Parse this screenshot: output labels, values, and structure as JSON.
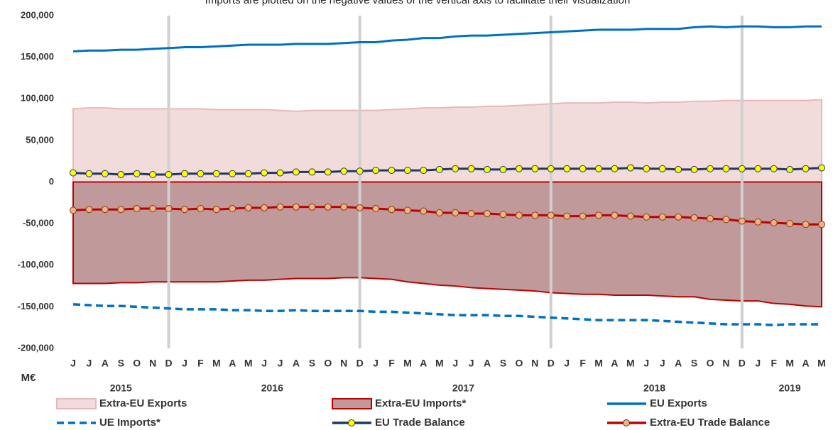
{
  "chart_data": {
    "type": "line",
    "subtitle": "Imports are plotted on the negative values of the vertical axis to facilitate their visualization",
    "y_label": "M€",
    "categories": [
      "J",
      "J",
      "A",
      "S",
      "O",
      "N",
      "D",
      "J",
      "F",
      "M",
      "A",
      "M",
      "J",
      "J",
      "A",
      "S",
      "O",
      "N",
      "D",
      "J",
      "F",
      "M",
      "A",
      "M",
      "J",
      "J",
      "A",
      "S",
      "O",
      "N",
      "D",
      "J",
      "F",
      "M",
      "A",
      "M",
      "J",
      "J",
      "A",
      "S",
      "O",
      "N",
      "D",
      "J",
      "F",
      "M",
      "A",
      "M"
    ],
    "years": [
      "2015",
      "2016",
      "2017",
      "2018",
      "2019"
    ],
    "ylim": [
      -200000,
      200000
    ],
    "yticks": [
      {
        "value": 200000,
        "label": "200,000"
      },
      {
        "value": 150000,
        "label": "150,000"
      },
      {
        "value": 100000,
        "label": "100,000"
      },
      {
        "value": 50000,
        "label": "50,000"
      },
      0,
      {
        "value": -50000,
        "label": "-50,000"
      },
      {
        "value": -100000,
        "label": "-100,000"
      },
      {
        "value": -150000,
        "label": "-150,000"
      },
      {
        "value": -200000,
        "label": "-200,000"
      }
    ],
    "grid": false,
    "series": [
      {
        "name": "Extra-EU Exports",
        "kind": "area",
        "color": "#f2dcdb",
        "stroke": "#e6b9b8",
        "values": [
          88000,
          89000,
          89000,
          88000,
          88000,
          88000,
          88000,
          88000,
          88000,
          87000,
          87000,
          87000,
          87000,
          86000,
          85000,
          86000,
          86000,
          86000,
          86000,
          86000,
          87000,
          88000,
          89000,
          89000,
          90000,
          90000,
          91000,
          91000,
          92000,
          93000,
          94000,
          95000,
          95000,
          95000,
          96000,
          96000,
          95000,
          96000,
          96000,
          97000,
          97000,
          98000,
          98000,
          98000,
          98000,
          98000,
          98000,
          99000
        ]
      },
      {
        "name": "Extra-EU Imports*",
        "kind": "area",
        "color": "#c0999a",
        "stroke": "#c00000",
        "values": [
          -122000,
          -122000,
          -122000,
          -121000,
          -121000,
          -120000,
          -120000,
          -120000,
          -120000,
          -120000,
          -119000,
          -118000,
          -118000,
          -117000,
          -116000,
          -116000,
          -116000,
          -115000,
          -115000,
          -116000,
          -117000,
          -120000,
          -122000,
          -124000,
          -125000,
          -127000,
          -128000,
          -129000,
          -130000,
          -131000,
          -133000,
          -134000,
          -135000,
          -135000,
          -136000,
          -136000,
          -136000,
          -137000,
          -138000,
          -138000,
          -141000,
          -142000,
          -143000,
          -143000,
          -146000,
          -147000,
          -149000,
          -150000
        ]
      },
      {
        "name": "EU Exports",
        "kind": "line",
        "color": "#0070c0",
        "dashed": false,
        "marker": false,
        "values": [
          157000,
          158000,
          158000,
          159000,
          159000,
          160000,
          161000,
          162000,
          162000,
          163000,
          164000,
          165000,
          165000,
          165000,
          166000,
          166000,
          166000,
          167000,
          168000,
          168000,
          170000,
          171000,
          173000,
          173000,
          175000,
          176000,
          176000,
          177000,
          178000,
          179000,
          180000,
          181000,
          182000,
          183000,
          183000,
          183000,
          184000,
          184000,
          184000,
          186000,
          187000,
          186000,
          187000,
          187000,
          186000,
          186000,
          187000,
          187000
        ]
      },
      {
        "name": "UE Imports*",
        "kind": "line",
        "color": "#0070c0",
        "dashed": true,
        "marker": false,
        "values": [
          -147000,
          -148000,
          -149000,
          -149000,
          -150000,
          -151000,
          -152000,
          -153000,
          -153000,
          -153000,
          -154000,
          -154000,
          -155000,
          -155000,
          -154000,
          -155000,
          -155000,
          -155000,
          -155000,
          -156000,
          -156000,
          -157000,
          -158000,
          -159000,
          -160000,
          -160000,
          -160000,
          -161000,
          -161000,
          -162000,
          -163000,
          -164000,
          -165000,
          -166000,
          -166000,
          -166000,
          -166000,
          -167000,
          -168000,
          -169000,
          -170000,
          -171000,
          -171000,
          -171000,
          -172000,
          -171000,
          -171000,
          -171000
        ]
      },
      {
        "name": "EU Trade Balance",
        "kind": "line",
        "color": "#1f3864",
        "dashed": false,
        "marker": true,
        "marker_color": "#ffff00",
        "values": [
          11000,
          10000,
          10000,
          9000,
          10000,
          9000,
          9000,
          10000,
          10000,
          10000,
          10000,
          10000,
          11000,
          11000,
          12000,
          12000,
          12000,
          13000,
          13000,
          14000,
          14000,
          14000,
          14000,
          15000,
          16000,
          16000,
          15000,
          15000,
          16000,
          16000,
          16000,
          16000,
          16000,
          16000,
          16000,
          17000,
          16000,
          16000,
          15000,
          15000,
          16000,
          16000,
          16000,
          16000,
          16000,
          15000,
          16000,
          17000
        ]
      },
      {
        "name": "Extra-EU Trade Balance",
        "kind": "line",
        "color": "#c00000",
        "dashed": false,
        "marker": true,
        "marker_color": "#f4b183",
        "values": [
          -34000,
          -33000,
          -33000,
          -33000,
          -32000,
          -32000,
          -32000,
          -33000,
          -32000,
          -33000,
          -32000,
          -31000,
          -31000,
          -30000,
          -30000,
          -30000,
          -30000,
          -30000,
          -31000,
          -32000,
          -33000,
          -34000,
          -35000,
          -37000,
          -37000,
          -38000,
          -38000,
          -39000,
          -40000,
          -40000,
          -40000,
          -41000,
          -41000,
          -40000,
          -40000,
          -41000,
          -42000,
          -42000,
          -42000,
          -43000,
          -44000,
          -45000,
          -47000,
          -48000,
          -49000,
          -50000,
          -51000,
          -51000
        ]
      }
    ]
  }
}
